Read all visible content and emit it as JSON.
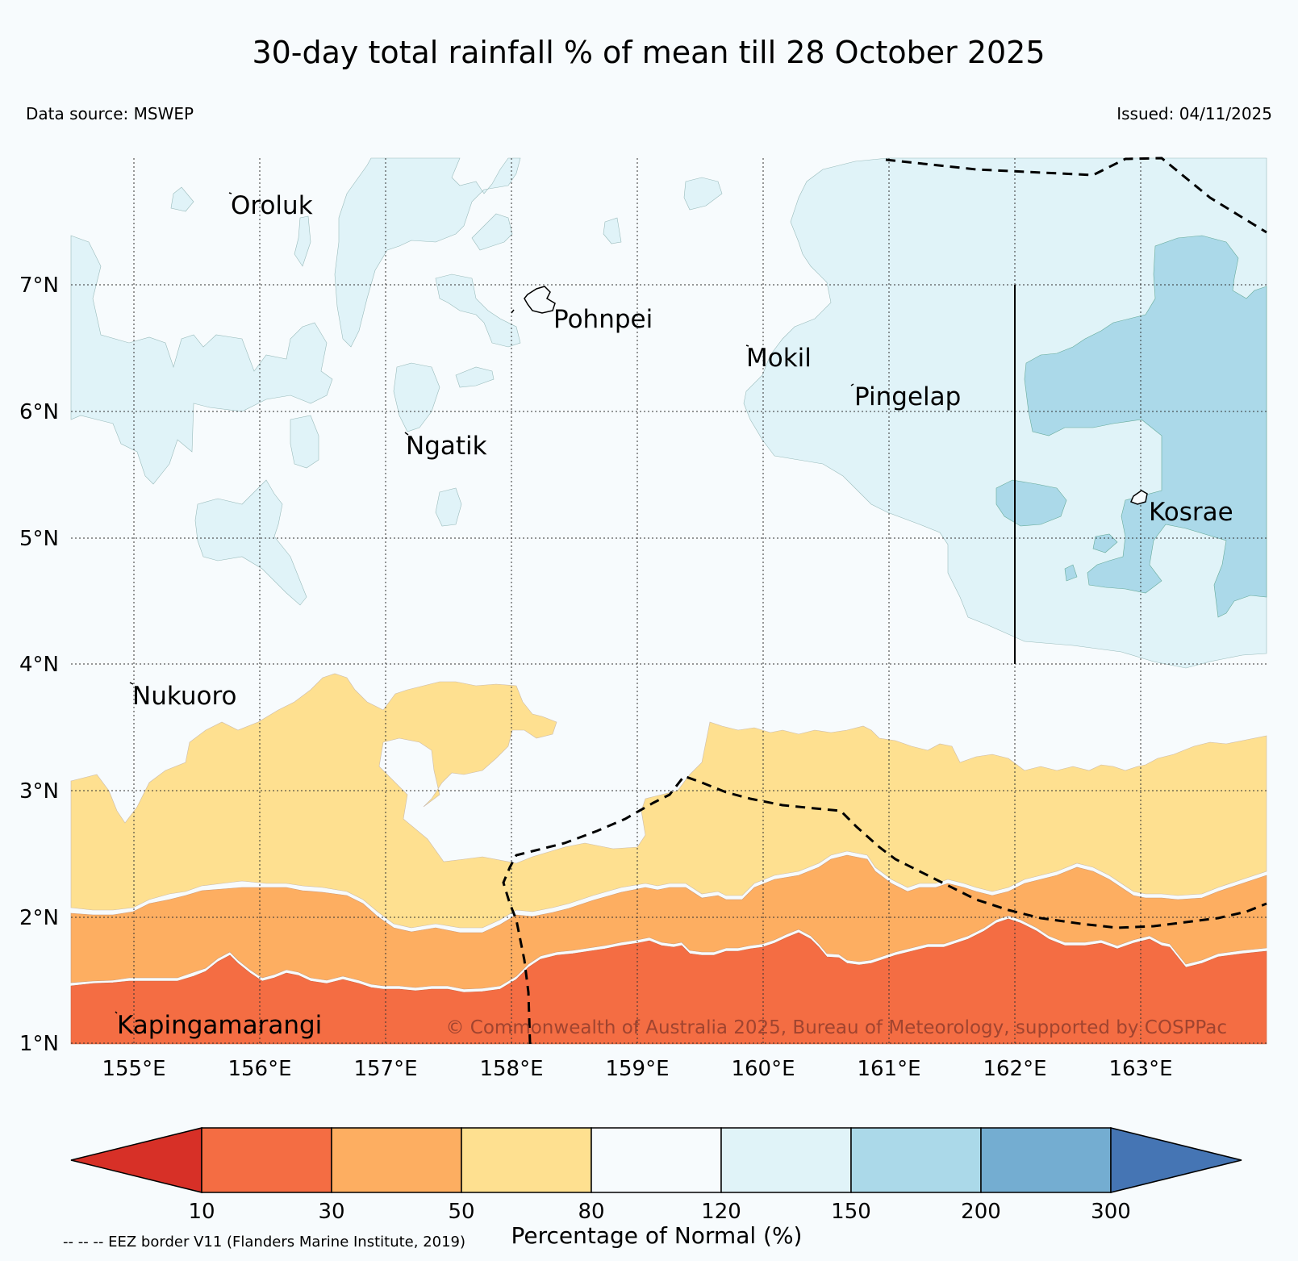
{
  "title": "30-day total rainfall % of mean till 28 October 2025",
  "data_source": "Data source: MSWEP",
  "issued": "Issued: 04/11/2025",
  "copyright": "© Commonwealth of Australia 2025, Bureau of Meteorology, supported by COSPPac",
  "eez_note": "-- -- -- EEZ border V11 (Flanders Marine Institute, 2019)",
  "lat_labels": [
    "7°N",
    "6°N",
    "5°N",
    "4°N",
    "3°N",
    "2°N",
    "1°N"
  ],
  "lon_labels": [
    "155°E",
    "156°E",
    "157°E",
    "158°E",
    "159°E",
    "160°E",
    "161°E",
    "162°E",
    "163°E"
  ],
  "places": {
    "oroluk": "Oroluk",
    "pohnpei": "Pohnpei",
    "mokil": "Mokil",
    "pingelap": "Pingelap",
    "ngatik": "Ngatik",
    "kosrae": "Kosrae",
    "nukuoro": "Nukuoro",
    "kapingamarangi": "Kapingamarangi"
  },
  "colorbar": {
    "label": "Percentage of Normal (%)",
    "ticks": [
      "10",
      "30",
      "50",
      "80",
      "120",
      "150",
      "200",
      "300"
    ],
    "colors": {
      "below_10": "#d73027",
      "10_30": "#f46d43",
      "30_50": "#fdae61",
      "50_80": "#fee090",
      "80_120": "#f7fbfd",
      "120_150": "#e0f3f8",
      "150_200": "#abd9e9",
      "200_300": "#74add1",
      "above_300": "#4575b4"
    }
  }
}
